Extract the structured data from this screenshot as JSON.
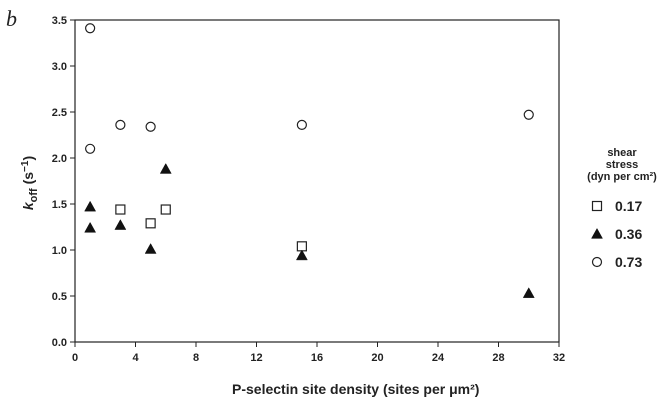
{
  "panel_label": "b",
  "chart_data": {
    "type": "scatter",
    "xlabel": "P-selectin site density (sites per μm²)",
    "ylabel": "k_off (s⁻¹)",
    "ylabel_main": "k",
    "ylabel_sub": "off",
    "ylabel_unit": " (s",
    "ylabel_sup": "−1",
    "ylabel_close": ")",
    "xlim": [
      0,
      32
    ],
    "ylim": [
      0,
      3.5
    ],
    "xticks": [
      0,
      4,
      8,
      12,
      16,
      20,
      24,
      28,
      32
    ],
    "yticks": [
      "0.0",
      "0.5",
      "1.0",
      "1.5",
      "2.0",
      "2.5",
      "3.0",
      "3.5"
    ],
    "grid": false,
    "legend_position": "right",
    "legend_title": [
      "shear",
      "stress",
      "(dyn per cm²)"
    ],
    "series": [
      {
        "name": "0.17",
        "marker": "open-square",
        "points": [
          {
            "x": 3,
            "y": 1.44
          },
          {
            "x": 5,
            "y": 1.29
          },
          {
            "x": 6,
            "y": 1.44
          },
          {
            "x": 15,
            "y": 1.04
          }
        ]
      },
      {
        "name": "0.36",
        "marker": "filled-triangle",
        "points": [
          {
            "x": 1,
            "y": 1.47
          },
          {
            "x": 1,
            "y": 1.24
          },
          {
            "x": 3,
            "y": 1.27
          },
          {
            "x": 5,
            "y": 1.01
          },
          {
            "x": 6,
            "y": 1.88
          },
          {
            "x": 15,
            "y": 0.94
          },
          {
            "x": 30,
            "y": 0.53
          }
        ]
      },
      {
        "name": "0.73",
        "marker": "open-circle",
        "points": [
          {
            "x": 1,
            "y": 3.41
          },
          {
            "x": 1,
            "y": 2.1
          },
          {
            "x": 3,
            "y": 2.36
          },
          {
            "x": 5,
            "y": 2.34
          },
          {
            "x": 15,
            "y": 2.36
          },
          {
            "x": 30,
            "y": 2.47
          }
        ]
      }
    ]
  }
}
